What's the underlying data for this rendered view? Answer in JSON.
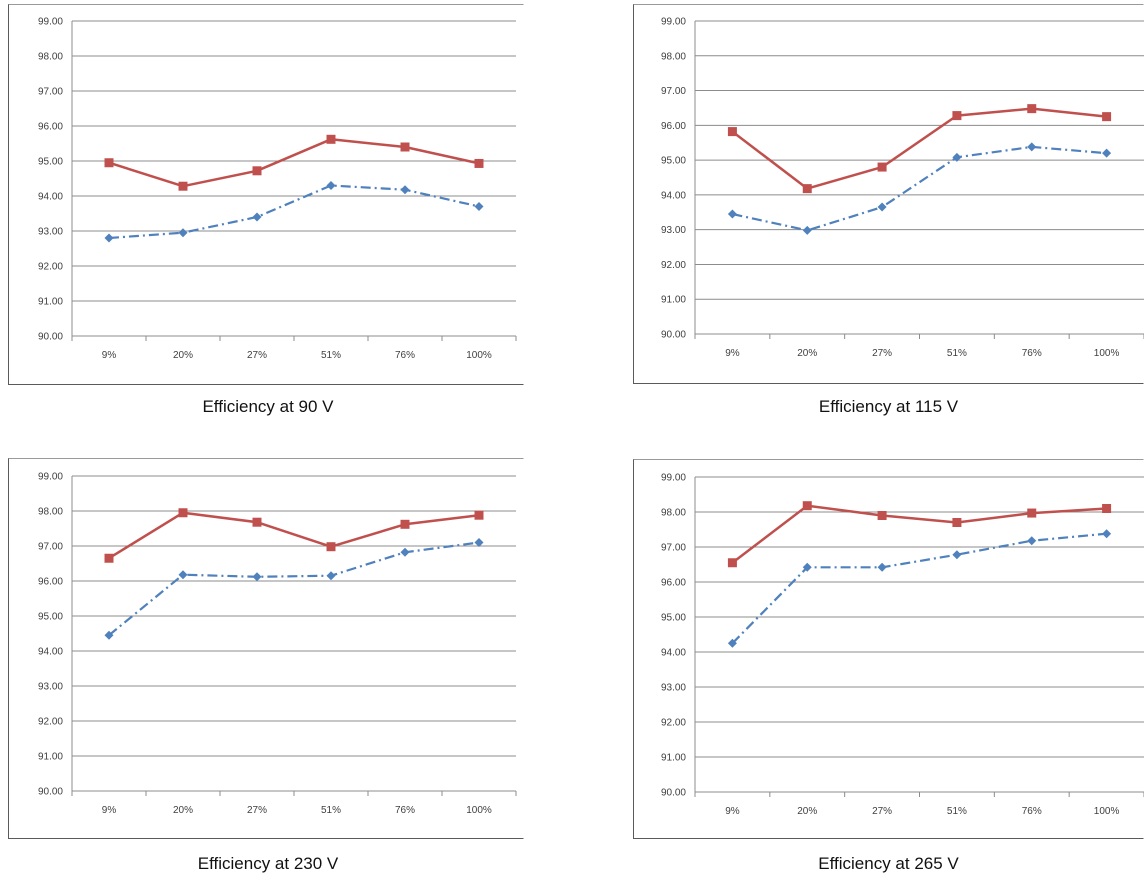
{
  "colors": {
    "series_a": "#4f81bd",
    "series_b": "#c0504d",
    "grid": "#8c8c8c"
  },
  "chart_data": [
    {
      "type": "line",
      "caption": "Efficiency at 90 V",
      "categories": [
        "9%",
        "20%",
        "27%",
        "51%",
        "76%",
        "100%"
      ],
      "ylim": [
        90,
        99
      ],
      "y_ticks": [
        "90.00",
        "91.00",
        "92.00",
        "93.00",
        "94.00",
        "95.00",
        "96.00",
        "97.00",
        "98.00",
        "99.00"
      ],
      "grid": true,
      "legend": "none",
      "series": [
        {
          "marker": "diamond",
          "line": "dash-dot",
          "values": [
            92.8,
            92.95,
            93.4,
            94.3,
            94.18,
            93.7
          ]
        },
        {
          "marker": "square",
          "line": "solid",
          "values": [
            94.95,
            94.28,
            94.72,
            95.62,
            95.4,
            94.93
          ]
        }
      ]
    },
    {
      "type": "line",
      "caption": "Efficiency at 115 V",
      "categories": [
        "9%",
        "20%",
        "27%",
        "51%",
        "76%",
        "100%"
      ],
      "ylim": [
        90,
        99
      ],
      "y_ticks": [
        "90.00",
        "91.00",
        "92.00",
        "93.00",
        "94.00",
        "95.00",
        "96.00",
        "97.00",
        "98.00",
        "99.00"
      ],
      "grid": true,
      "legend": "none",
      "series": [
        {
          "marker": "diamond",
          "line": "dash-dot",
          "values": [
            93.45,
            92.98,
            93.65,
            95.08,
            95.38,
            95.2
          ]
        },
        {
          "marker": "square",
          "line": "solid",
          "values": [
            95.82,
            94.18,
            94.8,
            96.28,
            96.48,
            96.25
          ]
        }
      ]
    },
    {
      "type": "line",
      "caption": "Efficiency at 230 V",
      "categories": [
        "9%",
        "20%",
        "27%",
        "51%",
        "76%",
        "100%"
      ],
      "ylim": [
        90,
        99
      ],
      "y_ticks": [
        "90.00",
        "91.00",
        "92.00",
        "93.00",
        "94.00",
        "95.00",
        "96.00",
        "97.00",
        "98.00",
        "99.00"
      ],
      "grid": true,
      "legend": "none",
      "series": [
        {
          "marker": "diamond",
          "line": "dash-dot",
          "values": [
            94.45,
            96.18,
            96.12,
            96.15,
            96.82,
            97.1
          ]
        },
        {
          "marker": "square",
          "line": "solid",
          "values": [
            96.65,
            97.95,
            97.68,
            96.98,
            97.62,
            97.88
          ]
        }
      ]
    },
    {
      "type": "line",
      "caption": "Efficiency at 265 V",
      "categories": [
        "9%",
        "20%",
        "27%",
        "51%",
        "76%",
        "100%"
      ],
      "ylim": [
        90,
        99
      ],
      "y_ticks": [
        "90.00",
        "91.00",
        "92.00",
        "93.00",
        "94.00",
        "95.00",
        "96.00",
        "97.00",
        "98.00",
        "99.00"
      ],
      "grid": true,
      "legend": "none",
      "series": [
        {
          "marker": "diamond",
          "line": "dash-dot",
          "values": [
            94.25,
            96.42,
            96.42,
            96.78,
            97.18,
            97.38
          ]
        },
        {
          "marker": "square",
          "line": "solid",
          "values": [
            96.55,
            98.18,
            97.9,
            97.7,
            97.97,
            98.1
          ]
        }
      ]
    }
  ]
}
